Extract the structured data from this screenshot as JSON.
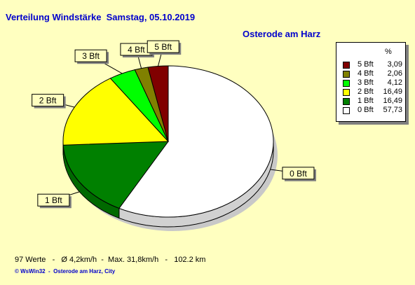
{
  "title": "Verteilung Windstärke  Samstag, 05.10.2019",
  "location": "Osterode am Harz",
  "legend": {
    "header": "%",
    "entries": [
      {
        "label": "5 Bft",
        "value": "3,09",
        "color": "#800000"
      },
      {
        "label": "4 Bft",
        "value": "2,06",
        "color": "#808000"
      },
      {
        "label": "3 Bft",
        "value": "4,12",
        "color": "#00ff00"
      },
      {
        "label": "2 Bft",
        "value": "16,49",
        "color": "#ffff00"
      },
      {
        "label": "1 Bft",
        "value": "16,49",
        "color": "#008000"
      },
      {
        "label": "0 Bft",
        "value": "57,73",
        "color": "#ffffff"
      }
    ]
  },
  "stats_text": "97 Werte   -   Ø 4,2km/h  -  Max. 31,8km/h   -   102.2 km",
  "footer_text": "© WsWin32  -  Osterode am Harz, City",
  "chart_data": {
    "type": "pie",
    "title": "Verteilung Windstärke  Samstag, 05.10.2019",
    "subtitle": "Osterode am Harz",
    "categories": [
      "0 Bft",
      "1 Bft",
      "2 Bft",
      "3 Bft",
      "4 Bft",
      "5 Bft"
    ],
    "values": [
      57.73,
      16.49,
      16.49,
      4.12,
      2.06,
      3.09
    ],
    "colors": [
      "#ffffff",
      "#008000",
      "#ffff00",
      "#00ff00",
      "#808000",
      "#800000"
    ],
    "legend_position": "top-right",
    "style": "3d"
  }
}
